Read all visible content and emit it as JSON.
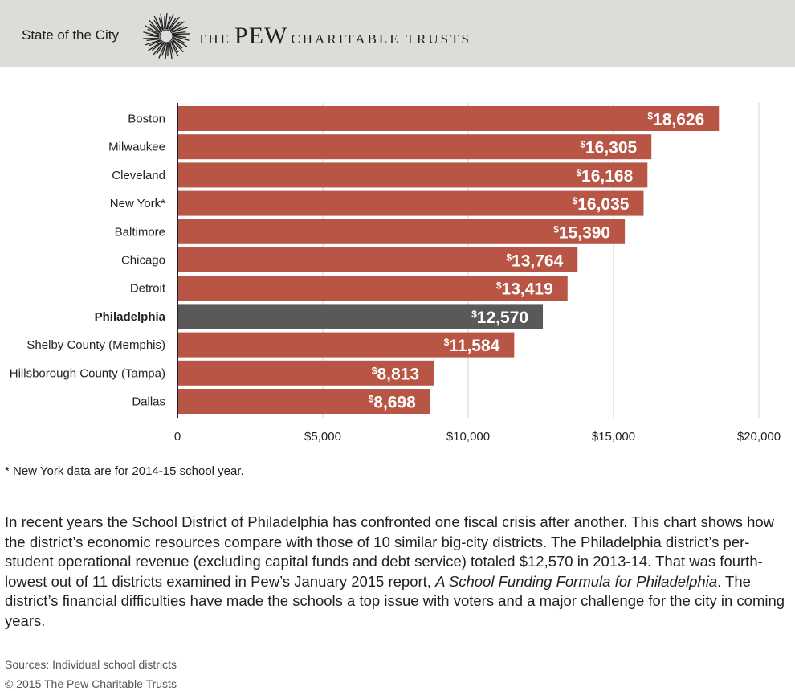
{
  "header": {
    "section": "State of the City",
    "org_the": "THE",
    "org_pew": "PEW",
    "org_rest": "CHARITABLE TRUSTS"
  },
  "colors": {
    "bar": "#b95545",
    "highlight": "#595959",
    "header_bg": "#dcdcd9",
    "grid": "#d0d0d0"
  },
  "chart_data": {
    "type": "bar",
    "orientation": "horizontal",
    "categories": [
      "Boston",
      "Milwaukee",
      "Cleveland",
      "New York*",
      "Baltimore",
      "Chicago",
      "Detroit",
      "Philadelphia",
      "Shelby County (Memphis)",
      "Hillsborough County (Tampa)",
      "Dallas"
    ],
    "values": [
      18626,
      16305,
      16168,
      16035,
      15390,
      13764,
      13419,
      12570,
      11584,
      8813,
      8698
    ],
    "value_labels": [
      "18,626",
      "16,305",
      "16,168",
      "16,035",
      "15,390",
      "13,764",
      "13,419",
      "12,570",
      "11,584",
      "8,813",
      "8,698"
    ],
    "currency_symbol": "$",
    "highlight": "Philadelphia",
    "xlim": [
      0,
      20000
    ],
    "xticks": [
      0,
      5000,
      10000,
      15000,
      20000
    ],
    "xtick_labels": [
      "0",
      "$5,000",
      "$10,000",
      "$15,000",
      "$20,000"
    ],
    "grid": true
  },
  "footnote": "* New York data are for 2014-15 school year.",
  "description": {
    "text_before": "In recent years the School District of Philadelphia has confronted one fiscal crisis after another. This chart shows how the district’s economic resources compare with those of 10 similar big-city districts. The Philadelphia district’s per-student operational revenue (excluding capital funds and debt service) totaled $12,570 in 2013-14. That was fourth-lowest out of 11 districts examined in Pew’s January 2015 report, ",
    "report_title": "A School Funding Formula for Philadelphia",
    "text_after": ". The district’s financial difficulties have made the schools a top issue with voters and a major challenge for the city in coming years."
  },
  "sources": "Sources: Individual school districts",
  "copyright": "© 2015 The Pew Charitable Trusts"
}
